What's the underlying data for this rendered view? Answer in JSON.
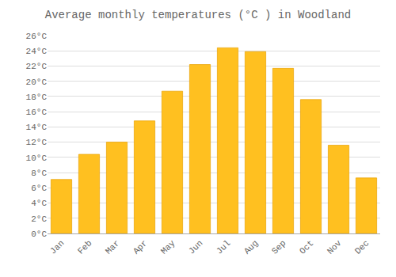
{
  "chart_data": {
    "type": "bar",
    "title": "Average monthly temperatures (°C ) in Woodland",
    "categories": [
      "Jan",
      "Feb",
      "Mar",
      "Apr",
      "May",
      "Jun",
      "Jul",
      "Aug",
      "Sep",
      "Oct",
      "Nov",
      "Dec"
    ],
    "values": [
      7.1,
      10.4,
      12.0,
      14.8,
      18.7,
      22.2,
      24.4,
      23.9,
      21.7,
      17.6,
      11.6,
      7.3
    ],
    "color": "#FFC020",
    "ylim": [
      0,
      26
    ],
    "yticks": [
      {
        "value": 0,
        "label": "0°C"
      },
      {
        "value": 2,
        "label": "2°C"
      },
      {
        "value": 4,
        "label": "4°C"
      },
      {
        "value": 6,
        "label": "6°C"
      },
      {
        "value": 8,
        "label": "8°C"
      },
      {
        "value": 10,
        "label": "10°C"
      },
      {
        "value": 12,
        "label": "12°C"
      },
      {
        "value": 14,
        "label": "14°C"
      },
      {
        "value": 16,
        "label": "16°C"
      },
      {
        "value": 18,
        "label": "18°C"
      },
      {
        "value": 20,
        "label": "20°C"
      },
      {
        "value": 22,
        "label": "22°C"
      },
      {
        "value": 24,
        "label": "24°C"
      },
      {
        "value": 26,
        "label": "26°C"
      }
    ],
    "grid": true
  }
}
